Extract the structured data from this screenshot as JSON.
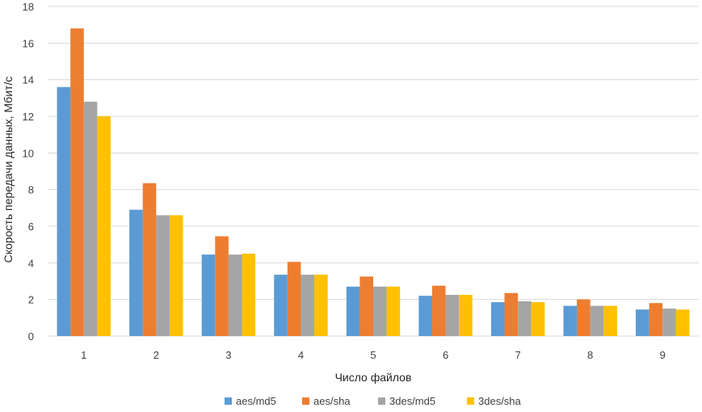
{
  "chart_data": {
    "type": "bar",
    "title": "",
    "xlabel": "Число файлов",
    "ylabel": "Скорость передачи  данных, Мбит/с",
    "categories": [
      "1",
      "2",
      "3",
      "4",
      "5",
      "6",
      "7",
      "8",
      "9"
    ],
    "ylim": [
      0,
      18
    ],
    "yticks": [
      "0",
      "2",
      "4",
      "6",
      "8",
      "10",
      "12",
      "14",
      "16",
      "18"
    ],
    "grid": true,
    "legend_position": "bottom",
    "series": [
      {
        "name": "aes/md5",
        "color": "#5b9bd5",
        "values": [
          13.6,
          6.9,
          4.45,
          3.35,
          2.7,
          2.2,
          1.85,
          1.65,
          1.45
        ]
      },
      {
        "name": "aes/sha",
        "color": "#ed7d31",
        "values": [
          16.8,
          8.35,
          5.45,
          4.05,
          3.25,
          2.75,
          2.35,
          2.0,
          1.8
        ]
      },
      {
        "name": "3des/md5",
        "color": "#a5a5a5",
        "values": [
          12.8,
          6.6,
          4.45,
          3.35,
          2.7,
          2.25,
          1.9,
          1.65,
          1.5
        ]
      },
      {
        "name": "3des/sha",
        "color": "#ffc000",
        "values": [
          12.0,
          6.6,
          4.5,
          3.35,
          2.7,
          2.25,
          1.85,
          1.65,
          1.45
        ]
      }
    ]
  }
}
